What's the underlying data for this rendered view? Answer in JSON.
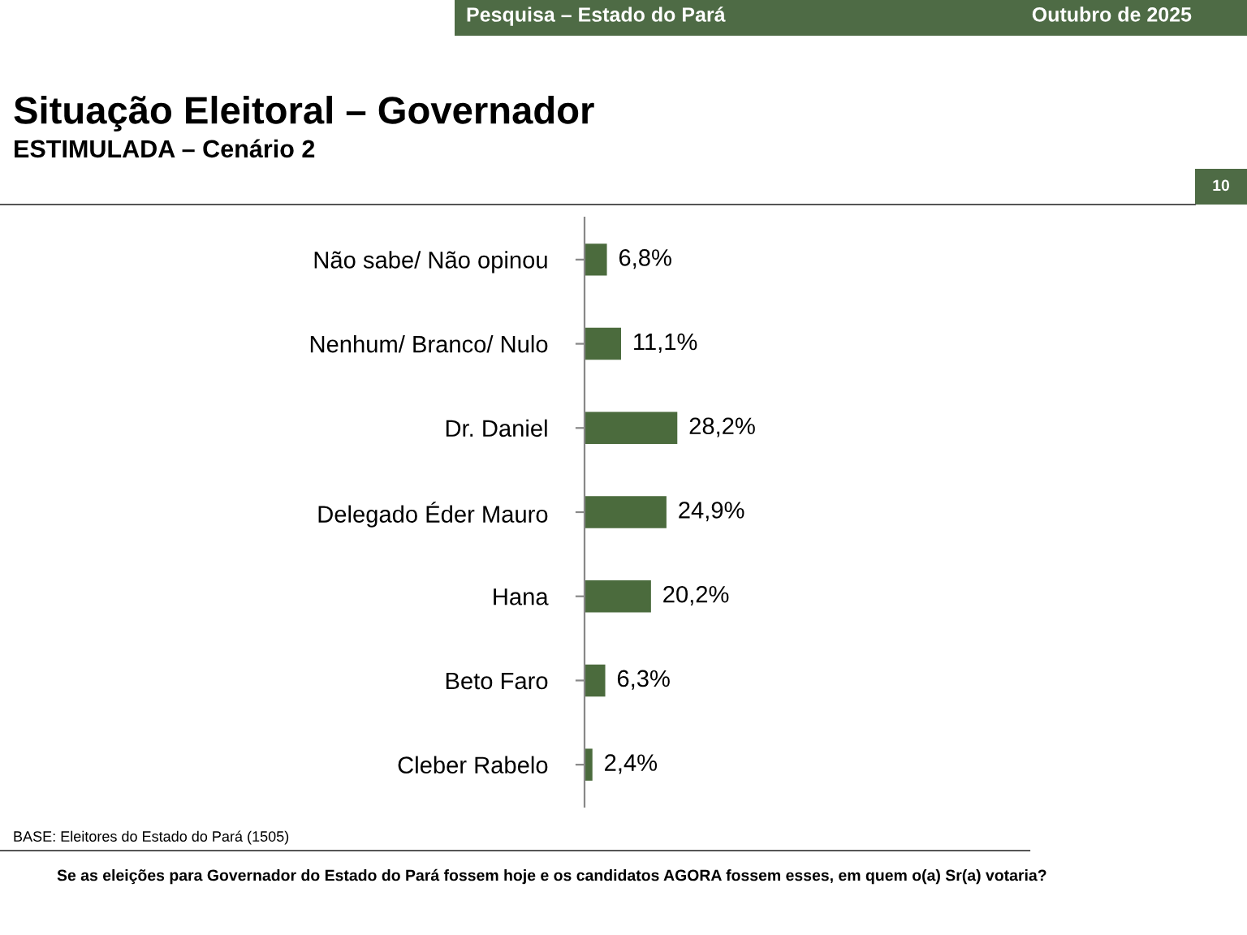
{
  "chart_data": {
    "type": "bar",
    "orientation": "horizontal",
    "title": "Situação Eleitoral – Governador",
    "subtitle": "ESTIMULADA – Cenário 2",
    "categories": [
      "Não sabe/ Não opinou",
      "Nenhum/ Branco/ Nulo",
      "Dr. Daniel",
      "Delegado Éder Mauro",
      "Hana",
      "Beto Faro",
      "Cleber Rabelo"
    ],
    "values": [
      6.8,
      11.1,
      28.2,
      24.9,
      20.2,
      6.3,
      2.4
    ],
    "value_labels": [
      "6,8%",
      "11,1%",
      "28,2%",
      "24,9%",
      "20,2%",
      "6,3%",
      "2,4%"
    ],
    "color": "#4b6b3d",
    "grid": false,
    "legend": false,
    "annotations": [
      "Pesquisa – Estado do Pará",
      "Outubro de 2025",
      "10",
      "BASE: Eleitores do Estado do Pará (1505)",
      "Se as eleições para Governador do Estado do Pará fossem hoje e os candidatos AGORA fossem esses, em quem o(a) Sr(a) votaria?"
    ]
  }
}
